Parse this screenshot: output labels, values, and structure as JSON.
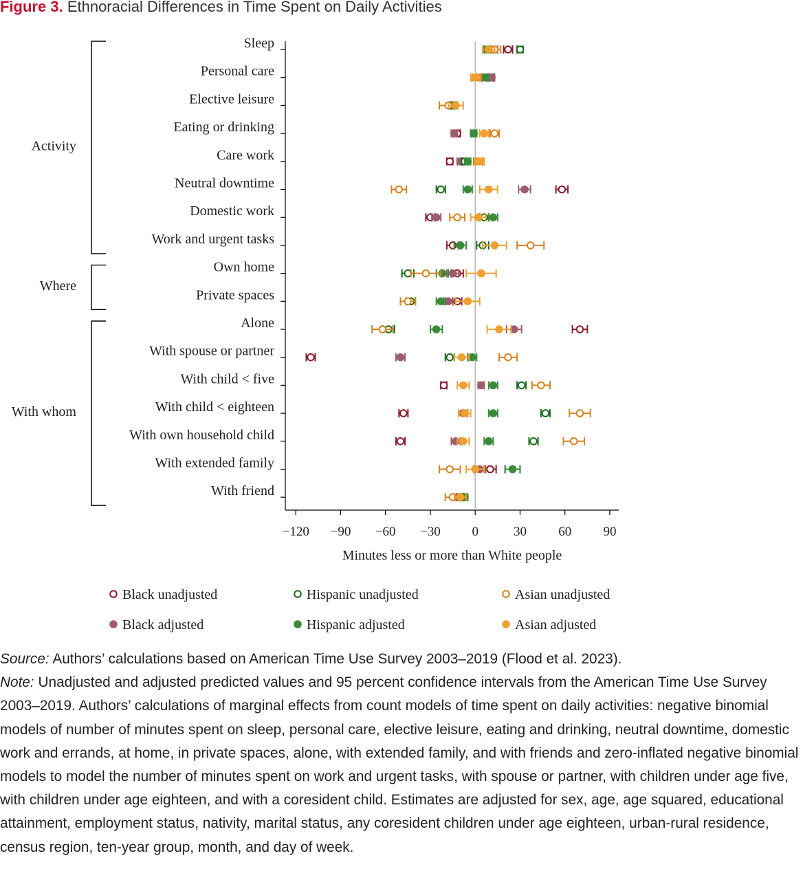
{
  "figure": {
    "label": "Figure 3.",
    "title": "Ethnoracial Differences in Time Spent on Daily Activities"
  },
  "chart_data": {
    "type": "scatter",
    "orientation": "horizontal-dot-plot-with-ci",
    "xlabel": "Minutes less or more than White people",
    "xlim": [
      -127,
      96
    ],
    "xticks": [
      -120,
      -90,
      -60,
      -30,
      0,
      30,
      60,
      90
    ],
    "xtick_labels": [
      "−120",
      "−90",
      "−60",
      "−30",
      "0",
      "30",
      "60",
      "90"
    ],
    "reference_line": 0,
    "groups": [
      {
        "label": "Activity",
        "first": 0,
        "last": 7
      },
      {
        "label": "Where",
        "first": 8,
        "last": 9
      },
      {
        "label": "With whom",
        "first": 10,
        "last": 16
      }
    ],
    "categories": [
      "Sleep",
      "Personal care",
      "Elective leisure",
      "Eating or drinking",
      "Care work",
      "Neutral downtime",
      "Domestic work",
      "Work and urgent tasks",
      "Own home",
      "Private spaces",
      "Alone",
      "With spouse or partner",
      "With child < five",
      "With child < eighteen",
      "With own household child",
      "With extended family",
      "With friend"
    ],
    "series": [
      {
        "name": "Black unadjusted",
        "color": "#8b1c2c",
        "filled": false,
        "values": [
          22,
          10,
          -14,
          -12,
          -17,
          58,
          -30,
          -15,
          -12,
          -12,
          70,
          -110,
          -21,
          -48,
          -50,
          10,
          -10
        ],
        "ci": [
          3,
          2,
          2,
          2,
          2,
          4,
          3,
          4,
          4,
          3,
          5,
          3,
          2,
          3,
          3,
          4,
          2
        ]
      },
      {
        "name": "Black adjusted",
        "color": "#9c5c6c",
        "filled": true,
        "values": [
          12,
          11,
          -15,
          -14,
          -10,
          33,
          -26,
          -10,
          -15,
          -18,
          26,
          -50,
          4,
          -8,
          -13,
          3,
          -12
        ],
        "ci": [
          3,
          2,
          2,
          2,
          2,
          4,
          3,
          4,
          4,
          3,
          5,
          3,
          2,
          3,
          3,
          4,
          2
        ]
      },
      {
        "name": "Hispanic unadjusted",
        "color": "#1a6b1a",
        "filled": false,
        "values": [
          30,
          5,
          -16,
          -1,
          -7,
          -23,
          6,
          5,
          -45,
          -43,
          -58,
          -17,
          31,
          47,
          39,
          25,
          -8
        ],
        "ci": [
          2,
          2,
          2,
          2,
          2,
          3,
          3,
          4,
          4,
          3,
          4,
          3,
          3,
          3,
          3,
          5,
          2
        ]
      },
      {
        "name": "Hispanic adjusted",
        "color": "#3a8a3a",
        "filled": true,
        "values": [
          8,
          7,
          -15,
          -1,
          -5,
          -5,
          12,
          -10,
          -22,
          -23,
          -26,
          -2,
          12,
          12,
          9,
          25,
          -7
        ],
        "ci": [
          2,
          2,
          2,
          2,
          2,
          3,
          3,
          4,
          4,
          3,
          4,
          3,
          3,
          3,
          3,
          5,
          2
        ]
      },
      {
        "name": "Asian unadjusted",
        "color": "#d9821e",
        "filled": false,
        "values": [
          13,
          1,
          -18,
          13,
          2,
          -51,
          -12,
          37,
          -33,
          -45,
          -62,
          22,
          44,
          70,
          66,
          -17,
          -15
        ],
        "ci": [
          4,
          3,
          6,
          3,
          3,
          5,
          5,
          9,
          10,
          5,
          7,
          6,
          6,
          7,
          7,
          7,
          5
        ]
      },
      {
        "name": "Asian adjusted",
        "color": "#f0a030",
        "filled": true,
        "values": [
          9,
          0,
          -13,
          6,
          3,
          9,
          2,
          13,
          4,
          -5,
          16,
          -9,
          -8,
          -7,
          -8,
          0,
          -10
        ],
        "ci": [
          4,
          3,
          5,
          3,
          3,
          6,
          5,
          8,
          10,
          8,
          8,
          5,
          4,
          4,
          4,
          6,
          4
        ]
      }
    ]
  },
  "notes": {
    "source_label": "Source:",
    "source_text": " Authors’ calculations based on American Time Use Survey 2003–2019 (Flood et al. 2023).",
    "note_label": "Note:",
    "note_text": " Unadjusted and adjusted predicted values and 95 percent confidence intervals from the American Time Use Survey 2003–2019. Authors’ calculations of marginal effects from count models of time spent on daily activities: negative binomial models of number of minutes spent on sleep, personal care, elective leisure, eating and drinking, neutral downtime, domestic work and errands, at home, in private spaces, alone, with extended family, and with friends and zero-inflated negative binomial models to model the number of minutes spent on work and urgent tasks, with spouse or partner, with children under age five, with children under age eighteen, and with a coresident child. Estimates are adjusted for sex, age, age squared, educational attainment, employment status, nativity, marital status, any coresident children under age eighteen, urban-rural residence, census region, ten-year group, month, and day of week."
  }
}
